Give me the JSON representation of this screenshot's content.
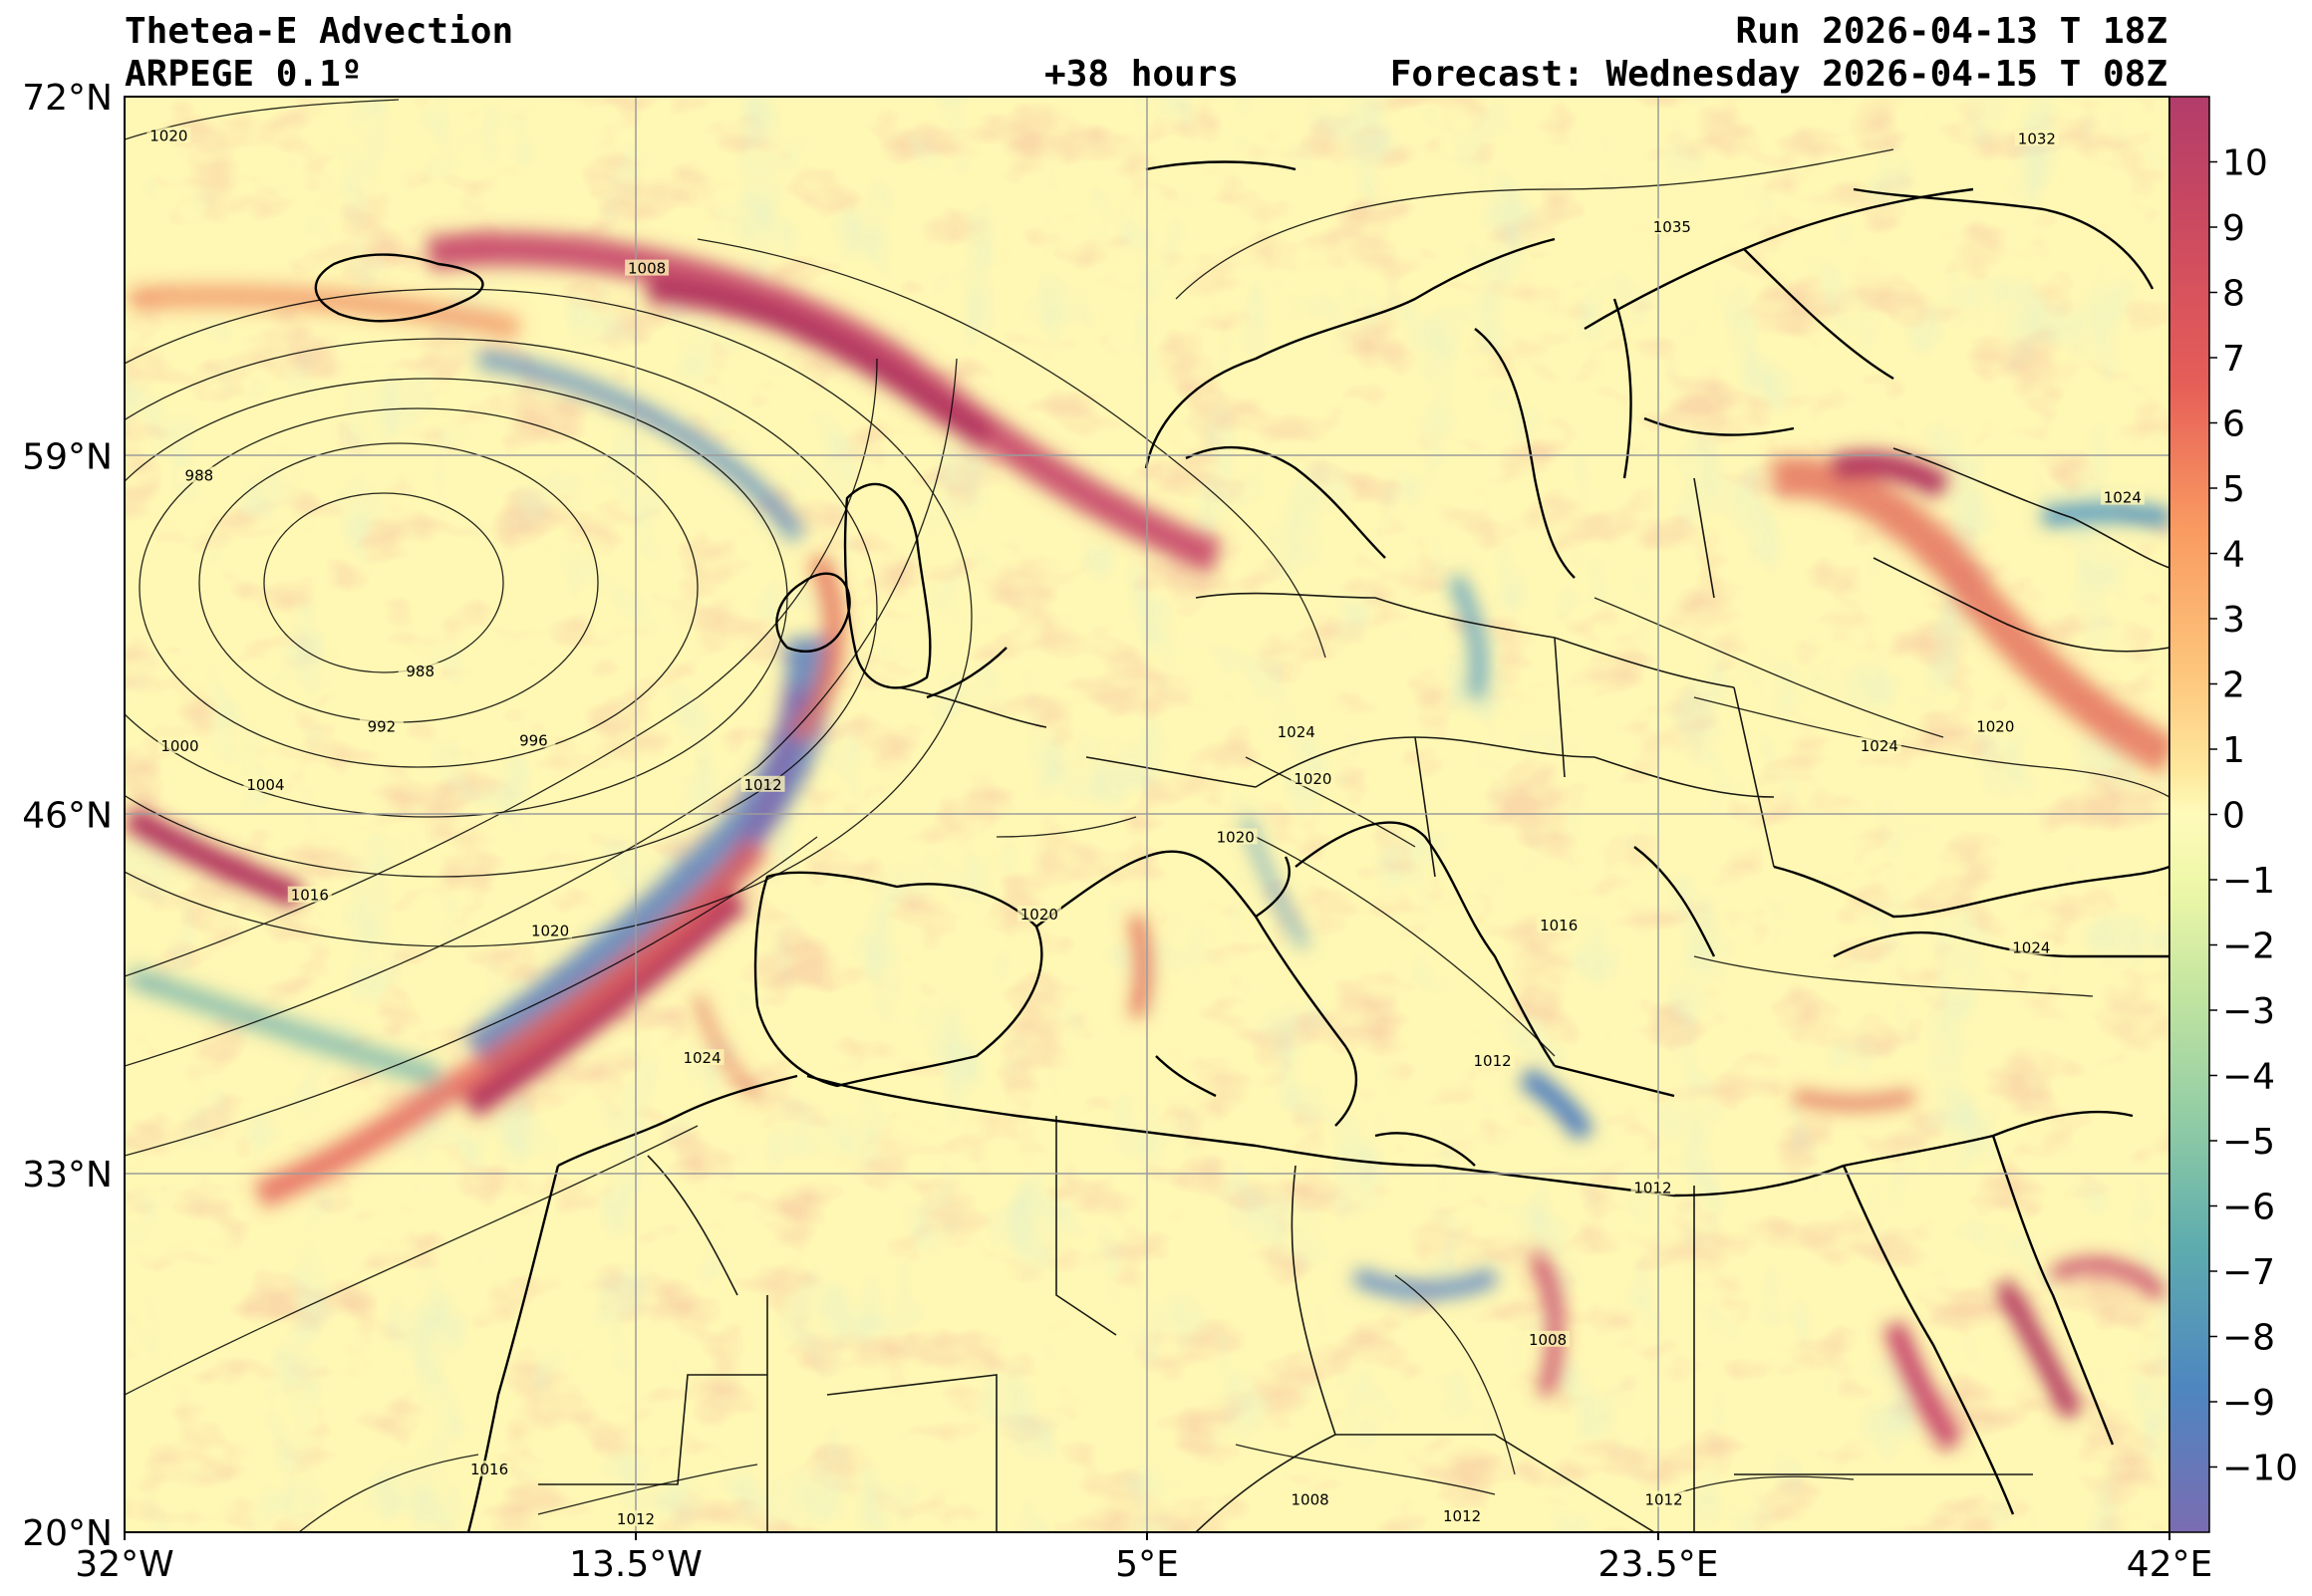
{
  "header": {
    "title": "Thetea-E Advection",
    "model": "ARPEGE 0.1º",
    "lead": "+38 hours",
    "run": "Run 2026-04-13 T 18Z",
    "forecast": "Forecast: Wednesday 2026-04-15 T 08Z"
  },
  "map": {
    "lon_range": [
      -32,
      42
    ],
    "lat_range": [
      20,
      72
    ],
    "lon_ticks": [
      -32,
      -13.5,
      5,
      23.5,
      42
    ],
    "lat_ticks": [
      20,
      33,
      46,
      59,
      72
    ],
    "lon_tick_labels": [
      "32°W",
      "13.5°W",
      "5°E",
      "23.5°E",
      "42°E"
    ],
    "lat_tick_labels": [
      "20°N",
      "33°N",
      "46°N",
      "59°N",
      "72°N"
    ],
    "grid": true,
    "isobar_labels": [
      {
        "text": "1020",
        "lon": -30.4,
        "lat": 70.5
      },
      {
        "text": "1008",
        "lon": -13.1,
        "lat": 65.7
      },
      {
        "text": "988",
        "lon": -29.3,
        "lat": 58.2
      },
      {
        "text": "988",
        "lon": -21.3,
        "lat": 51.1
      },
      {
        "text": "992",
        "lon": -22.7,
        "lat": 49.1
      },
      {
        "text": "996",
        "lon": -17.2,
        "lat": 48.6
      },
      {
        "text": "1000",
        "lon": -30.0,
        "lat": 48.4
      },
      {
        "text": "1004",
        "lon": -26.9,
        "lat": 47.0
      },
      {
        "text": "1012",
        "lon": -8.9,
        "lat": 47.0
      },
      {
        "text": "1016",
        "lon": -25.3,
        "lat": 43.0
      },
      {
        "text": "1020",
        "lon": -16.6,
        "lat": 41.7
      },
      {
        "text": "1024",
        "lon": -11.1,
        "lat": 37.1
      },
      {
        "text": "1024",
        "lon": 10.4,
        "lat": 48.9
      },
      {
        "text": "1020",
        "lon": 11.0,
        "lat": 47.2
      },
      {
        "text": "1020",
        "lon": 8.2,
        "lat": 45.1
      },
      {
        "text": "1020",
        "lon": 1.1,
        "lat": 42.3
      },
      {
        "text": "1016",
        "lon": 19.9,
        "lat": 41.9
      },
      {
        "text": "1012",
        "lon": 17.5,
        "lat": 37.0
      },
      {
        "text": "1012",
        "lon": 23.3,
        "lat": 32.4
      },
      {
        "text": "1008",
        "lon": 19.5,
        "lat": 26.9
      },
      {
        "text": "1008",
        "lon": 10.9,
        "lat": 21.1
      },
      {
        "text": "1012",
        "lon": 16.4,
        "lat": 20.5
      },
      {
        "text": "1012",
        "lon": -13.5,
        "lat": 20.4
      },
      {
        "text": "1016",
        "lon": -18.8,
        "lat": 22.2
      },
      {
        "text": "1035",
        "lon": 24.0,
        "lat": 67.2
      },
      {
        "text": "1032",
        "lon": 37.2,
        "lat": 70.4
      },
      {
        "text": "1024",
        "lon": 40.3,
        "lat": 57.4
      },
      {
        "text": "1024",
        "lon": 31.5,
        "lat": 48.4
      },
      {
        "text": "1020",
        "lon": 35.7,
        "lat": 49.1
      },
      {
        "text": "1024",
        "lon": 37.0,
        "lat": 41.1
      },
      {
        "text": "1012",
        "lon": 23.7,
        "lat": 21.1
      }
    ]
  },
  "colorbar": {
    "ticks": [
      "10",
      "9",
      "8",
      "7",
      "6",
      "5",
      "4",
      "3",
      "2",
      "1",
      "0",
      "−1",
      "−2",
      "−3",
      "−4",
      "−5",
      "−6",
      "−7",
      "−8",
      "−9",
      "−10"
    ],
    "colors": [
      "#7e6fb0",
      "#5b7fbd",
      "#4f97c0",
      "#68b0a8",
      "#8ac9a5",
      "#aed9a0",
      "#cee9a0",
      "#e6f4a4",
      "#f6fab8",
      "#fff7b2",
      "#fee79a",
      "#fdd283",
      "#fcb571",
      "#f89561",
      "#ec7459",
      "#df5a5a",
      "#cc4a60",
      "#b23c6a"
    ]
  },
  "colors": {
    "background": "#fff7b4",
    "positive_strong": "#b2365e",
    "negative_strong": "#6d74b6",
    "coast": "#000000",
    "grid": "#9b9b9b"
  }
}
